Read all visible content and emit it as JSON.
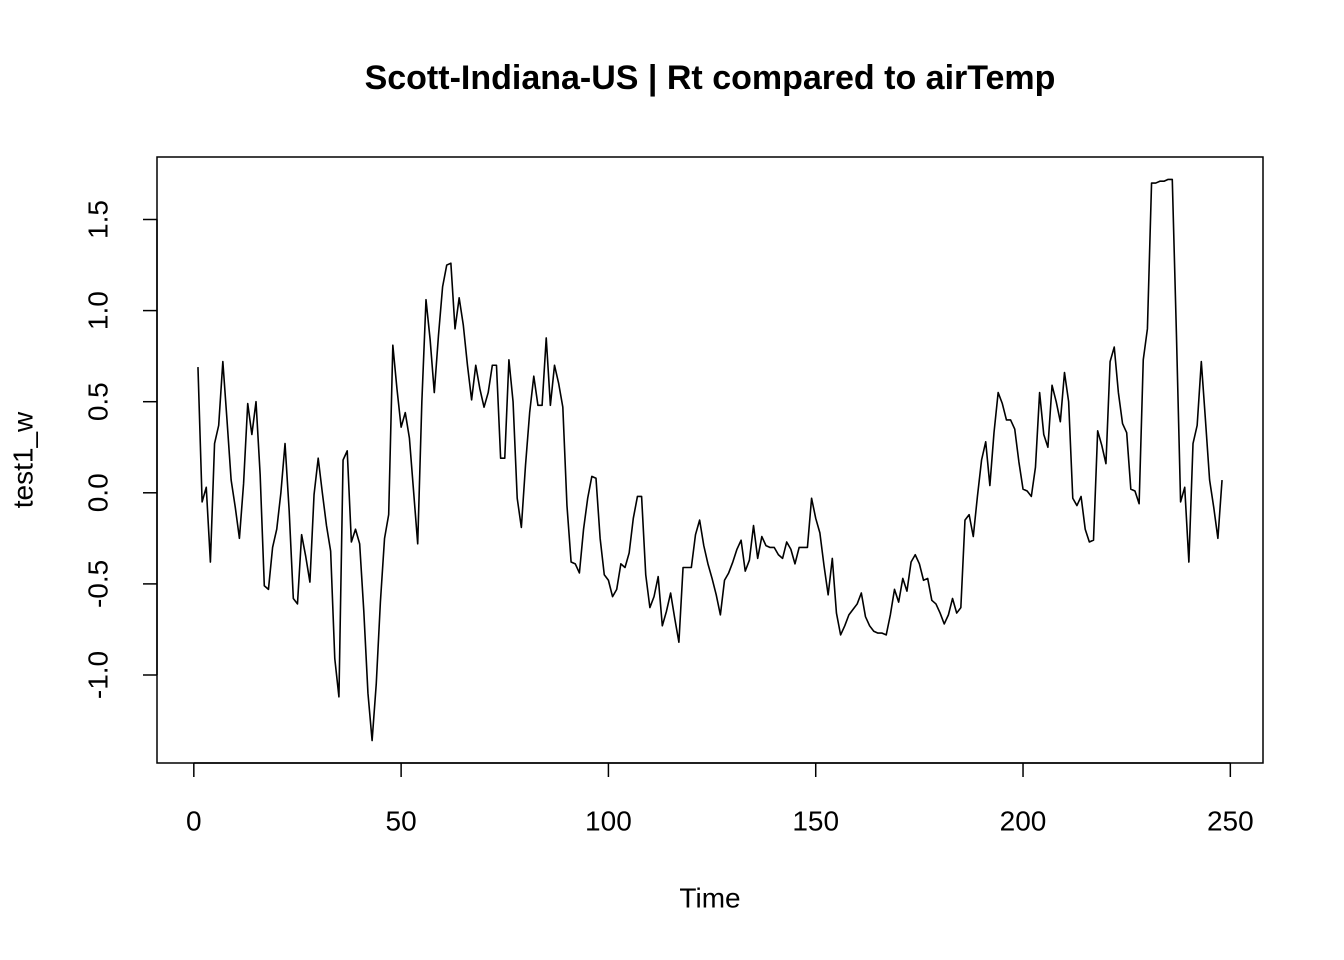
{
  "chart_data": {
    "type": "line",
    "title": "Scott-Indiana-US | Rt compared to airTemp",
    "xlabel": "Time",
    "ylabel": "test1_w",
    "color": "#000000",
    "xlim": [
      -8.88,
      257.88
    ],
    "ylim": [
      -1.483,
      1.843
    ],
    "xticks": [
      0,
      50,
      100,
      150,
      200,
      250
    ],
    "yticks": [
      {
        "value": -1.0,
        "label": "-1.0"
      },
      {
        "value": -0.5,
        "label": "-0.5"
      },
      {
        "value": 0.0,
        "label": "0.0"
      },
      {
        "value": 0.5,
        "label": "0.5"
      },
      {
        "value": 1.0,
        "label": "1.0"
      },
      {
        "value": 1.5,
        "label": "1.5"
      }
    ],
    "x": [
      1,
      2,
      3,
      4,
      5,
      6,
      7,
      8,
      9,
      10,
      11,
      12,
      13,
      14,
      15,
      16,
      17,
      18,
      19,
      20,
      21,
      22,
      23,
      24,
      25,
      26,
      27,
      28,
      29,
      30,
      31,
      32,
      33,
      34,
      35,
      36,
      37,
      38,
      39,
      40,
      41,
      42,
      43,
      44,
      45,
      46,
      47,
      48,
      49,
      50,
      51,
      52,
      53,
      54,
      55,
      56,
      57,
      58,
      59,
      60,
      61,
      62,
      63,
      64,
      65,
      66,
      67,
      68,
      69,
      70,
      71,
      72,
      73,
      74,
      75,
      76,
      77,
      78,
      79,
      80,
      81,
      82,
      83,
      84,
      85,
      86,
      87,
      88,
      89,
      90,
      91,
      92,
      93,
      94,
      95,
      96,
      97,
      98,
      99,
      100,
      101,
      102,
      103,
      104,
      105,
      106,
      107,
      108,
      109,
      110,
      111,
      112,
      113,
      114,
      115,
      116,
      117,
      118,
      119,
      120,
      121,
      122,
      123,
      124,
      125,
      126,
      127,
      128,
      129,
      130,
      131,
      132,
      133,
      134,
      135,
      136,
      137,
      138,
      139,
      140,
      141,
      142,
      143,
      144,
      145,
      146,
      147,
      148,
      149,
      150,
      151,
      152,
      153,
      154,
      155,
      156,
      157,
      158,
      159,
      160,
      161,
      162,
      163,
      164,
      165,
      166,
      167,
      168,
      169,
      170,
      171,
      172,
      173,
      174,
      175,
      176,
      177,
      178,
      179,
      180,
      181,
      182,
      183,
      184,
      185,
      186,
      187,
      188,
      189,
      190,
      191,
      192,
      193,
      194,
      195,
      196,
      197,
      198,
      199,
      200,
      201,
      202,
      203,
      204,
      205,
      206,
      207,
      208,
      209,
      210,
      211,
      212,
      213,
      214,
      215,
      216,
      217,
      218,
      219,
      220,
      221,
      222,
      223,
      224,
      225,
      226,
      227,
      228,
      229,
      230,
      231,
      232,
      233,
      234,
      235,
      236,
      237,
      238,
      239,
      240,
      241,
      242,
      243,
      244,
      245,
      246,
      247,
      248
    ],
    "values": [
      0.69,
      -0.05,
      0.03,
      -0.38,
      0.27,
      0.37,
      0.72,
      0.4,
      0.07,
      -0.08,
      -0.25,
      0.05,
      0.49,
      0.32,
      0.5,
      0.1,
      -0.51,
      -0.53,
      -0.3,
      -0.2,
      0.0,
      0.27,
      -0.1,
      -0.58,
      -0.61,
      -0.23,
      -0.35,
      -0.49,
      -0.01,
      0.19,
      0.0,
      -0.18,
      -0.32,
      -0.91,
      -1.12,
      0.18,
      0.23,
      -0.27,
      -0.2,
      -0.28,
      -0.65,
      -1.1,
      -1.36,
      -1.05,
      -0.6,
      -0.25,
      -0.12,
      0.81,
      0.57,
      0.36,
      0.44,
      0.3,
      0.01,
      -0.28,
      0.5,
      1.06,
      0.84,
      0.55,
      0.86,
      1.13,
      1.25,
      1.26,
      0.9,
      1.07,
      0.92,
      0.7,
      0.51,
      0.7,
      0.57,
      0.47,
      0.55,
      0.7,
      0.7,
      0.19,
      0.19,
      0.73,
      0.5,
      -0.03,
      -0.19,
      0.15,
      0.44,
      0.64,
      0.48,
      0.48,
      0.85,
      0.48,
      0.7,
      0.6,
      0.47,
      -0.07,
      -0.38,
      -0.39,
      -0.44,
      -0.2,
      -0.03,
      0.09,
      0.08,
      -0.25,
      -0.45,
      -0.48,
      -0.57,
      -0.53,
      -0.39,
      -0.41,
      -0.33,
      -0.14,
      -0.02,
      -0.02,
      -0.45,
      -0.63,
      -0.57,
      -0.46,
      -0.73,
      -0.65,
      -0.55,
      -0.69,
      -0.82,
      -0.41,
      -0.41,
      -0.41,
      -0.23,
      -0.15,
      -0.29,
      -0.39,
      -0.47,
      -0.56,
      -0.67,
      -0.48,
      -0.44,
      -0.38,
      -0.31,
      -0.26,
      -0.43,
      -0.37,
      -0.18,
      -0.36,
      -0.24,
      -0.29,
      -0.3,
      -0.3,
      -0.34,
      -0.36,
      -0.27,
      -0.31,
      -0.39,
      -0.3,
      -0.3,
      -0.3,
      -0.03,
      -0.14,
      -0.22,
      -0.4,
      -0.56,
      -0.36,
      -0.66,
      -0.78,
      -0.73,
      -0.67,
      -0.64,
      -0.61,
      -0.55,
      -0.68,
      -0.73,
      -0.76,
      -0.77,
      -0.77,
      -0.78,
      -0.67,
      -0.53,
      -0.6,
      -0.47,
      -0.54,
      -0.38,
      -0.34,
      -0.39,
      -0.48,
      -0.47,
      -0.59,
      -0.61,
      -0.66,
      -0.72,
      -0.67,
      -0.58,
      -0.66,
      -0.63,
      -0.15,
      -0.12,
      -0.24,
      -0.02,
      0.18,
      0.28,
      0.04,
      0.33,
      0.55,
      0.49,
      0.4,
      0.4,
      0.35,
      0.17,
      0.02,
      0.01,
      -0.02,
      0.14,
      0.55,
      0.32,
      0.25,
      0.59,
      0.5,
      0.39,
      0.66,
      0.5,
      -0.03,
      -0.07,
      -0.02,
      -0.2,
      -0.27,
      -0.26,
      0.34,
      0.26,
      0.16,
      0.72,
      0.8,
      0.55,
      0.38,
      0.33,
      0.02,
      0.01,
      -0.06,
      0.73,
      0.9,
      1.7,
      1.7,
      1.71,
      1.71,
      1.72,
      1.72,
      0.87,
      -0.05,
      0.03,
      -0.38,
      0.27,
      0.37,
      0.72,
      0.4,
      0.07,
      -0.08,
      -0.25,
      0.07
    ]
  }
}
